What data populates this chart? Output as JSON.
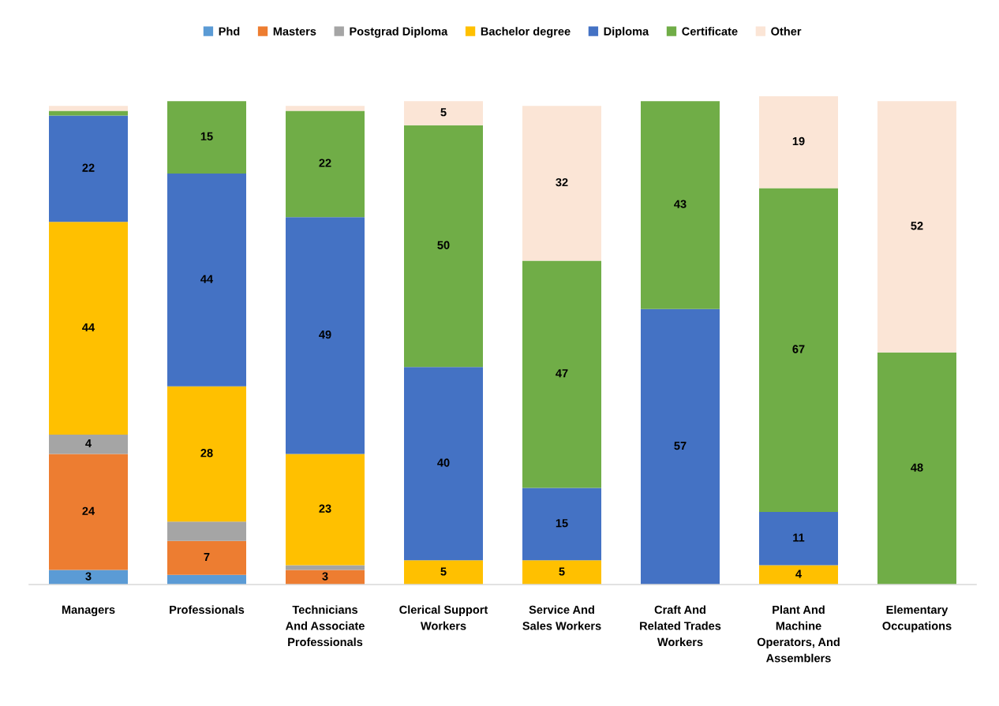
{
  "chart_data": {
    "type": "bar",
    "stacked": true,
    "legend": "top",
    "grid": false,
    "tick_labels": "x",
    "categories": [
      "Managers",
      "Professionals",
      "Technicians\nAnd Associate\nProfessionals",
      "Clerical Support\nWorkers",
      "Service And\nSales Workers",
      "Craft And\nRelated Trades\nWorkers",
      "Plant And\nMachine\nOperators, And\nAssemblers",
      "Elementary\nOccupations"
    ],
    "series": [
      {
        "name": "Phd",
        "color": "#5b9bd5",
        "values": [
          3,
          2,
          null,
          null,
          null,
          null,
          null,
          null
        ],
        "value_labels": [
          "3",
          null,
          null,
          null,
          null,
          null,
          null,
          null
        ]
      },
      {
        "name": "Masters",
        "color": "#ed7d31",
        "values": [
          24,
          7,
          3,
          null,
          null,
          null,
          null,
          null
        ],
        "value_labels": [
          "24",
          "7",
          "3",
          null,
          null,
          null,
          null,
          null
        ]
      },
      {
        "name": "Postgrad Diploma",
        "color": "#a5a5a5",
        "values": [
          4,
          4,
          1,
          null,
          null,
          null,
          null,
          null
        ],
        "value_labels": [
          "4",
          null,
          null,
          null,
          null,
          null,
          null,
          null
        ]
      },
      {
        "name": "Bachelor degree",
        "color": "#ffc000",
        "values": [
          44,
          28,
          23,
          5,
          5,
          null,
          4,
          null
        ],
        "value_labels": [
          "44",
          "28",
          "23",
          "5",
          "5",
          null,
          "4",
          null
        ]
      },
      {
        "name": "Diploma",
        "color": "#4472c4",
        "values": [
          22,
          44,
          49,
          40,
          15,
          57,
          11,
          null
        ],
        "value_labels": [
          "22",
          "44",
          "49",
          "40",
          "15",
          "57",
          "11",
          null
        ]
      },
      {
        "name": "Certificate",
        "color": "#70ad47",
        "values": [
          1,
          15,
          22,
          50,
          47,
          43,
          67,
          48
        ],
        "value_labels": [
          null,
          "15",
          "22",
          "50",
          "47",
          "43",
          "67",
          "48"
        ]
      },
      {
        "name": "Other",
        "color": "#fbe5d6",
        "values": [
          1,
          null,
          1,
          5,
          32,
          null,
          19,
          52
        ],
        "value_labels": [
          null,
          null,
          null,
          "5",
          "32",
          null,
          "19",
          "52"
        ]
      }
    ]
  }
}
